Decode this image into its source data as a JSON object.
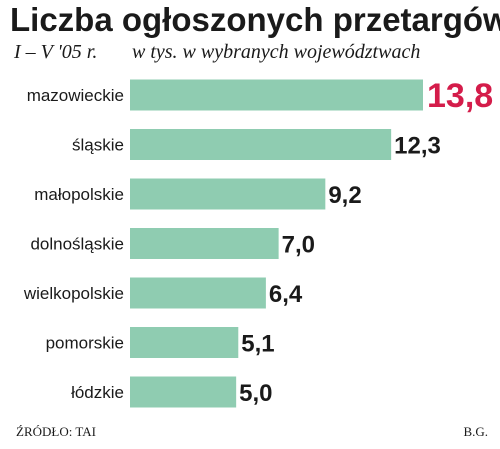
{
  "chart_data": {
    "type": "bar",
    "orientation": "horizontal",
    "title": "Liczba ogłoszonych przetargów",
    "subtitle_period": "I – V '05 r.",
    "subtitle_unit": "w tys. w wybranych województwach",
    "categories": [
      "mazowieckie",
      "śląskie",
      "małopolskie",
      "dolnośląskie",
      "wielkopolskie",
      "pomorskie",
      "łódzkie"
    ],
    "values": [
      13.8,
      12.3,
      9.2,
      7.0,
      6.4,
      5.1,
      5.0
    ],
    "value_labels": [
      "13,8",
      "12,3",
      "9,2",
      "7,0",
      "6,4",
      "5,1",
      "5,0"
    ],
    "highlight_index": 0,
    "xlim": [
      0,
      13.8
    ],
    "grid": false,
    "legend": "none"
  },
  "colors": {
    "bar": "#8fccb1",
    "highlight_label": "#d41c4a",
    "text": "#1a1a1a"
  },
  "footer": {
    "source": "ŹRÓDŁO: TAI",
    "author": "B.G."
  }
}
